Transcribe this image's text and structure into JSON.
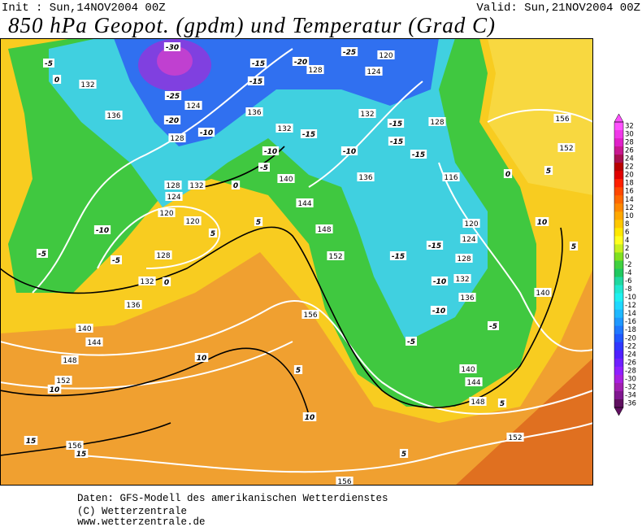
{
  "header": {
    "init": "Init : Sun,14NOV2004 00Z",
    "valid": "Valid: Sun,21NOV2004 00Z",
    "title": "850 hPa Geopot. (gpdm) und Temperatur (Grad C)"
  },
  "map": {
    "geopotential_labels": [
      "132",
      "136",
      "124",
      "128",
      "120",
      "124",
      "128",
      "136",
      "132",
      "132",
      "128",
      "156",
      "152",
      "116",
      "140",
      "136",
      "128",
      "132",
      "124",
      "144",
      "120",
      "120",
      "120",
      "148",
      "124",
      "128",
      "152",
      "128",
      "132",
      "132",
      "136",
      "136",
      "140",
      "156",
      "140",
      "144",
      "148",
      "140",
      "144",
      "152",
      "148",
      "156",
      "152",
      "156"
    ],
    "temperature_labels": [
      "-5",
      "0",
      "-30",
      "-25",
      "-20",
      "-10",
      "-15",
      "-20",
      "-25",
      "-15",
      "-15",
      "-15",
      "-15",
      "-10",
      "-5",
      "-10",
      "-15",
      "0",
      "5",
      "0",
      "5",
      "10",
      "-10",
      "5",
      "5",
      "-5",
      "-5",
      "-15",
      "-15",
      "-10",
      "0",
      "-10",
      "-5",
      "-5",
      "10",
      "5",
      "10",
      "5",
      "10",
      "15",
      "15",
      "5"
    ]
  },
  "colorbar": {
    "ticks": [
      32,
      30,
      28,
      26,
      24,
      22,
      20,
      18,
      16,
      14,
      12,
      10,
      8,
      6,
      4,
      2,
      0,
      -2,
      -4,
      -6,
      -8,
      -10,
      -12,
      -14,
      -16,
      -18,
      -20,
      -22,
      -24,
      -26,
      -28,
      -30,
      -32,
      -34,
      -36
    ],
    "colors": [
      "#ff50ff",
      "#f038e8",
      "#e020c8",
      "#c81890",
      "#a81050",
      "#b80000",
      "#e00000",
      "#ff2000",
      "#ff4800",
      "#ff6800",
      "#ff8800",
      "#ffa800",
      "#ffc800",
      "#ffe800",
      "#ffff20",
      "#c8f020",
      "#80e020",
      "#40d040",
      "#20c860",
      "#20d8a0",
      "#20e8d0",
      "#20f0f0",
      "#20d8ff",
      "#20b8ff",
      "#2098ff",
      "#2078ff",
      "#2058ff",
      "#3038ff",
      "#5020ff",
      "#7020ff",
      "#9020ff",
      "#a820e0",
      "#a020b0",
      "#801890",
      "#601060"
    ]
  },
  "footer": {
    "lines": [
      "Daten: GFS-Modell des amerikanischen Wetterdienstes",
      "(C) Wetterzentrale",
      "www.wetterzentrale.de"
    ]
  }
}
